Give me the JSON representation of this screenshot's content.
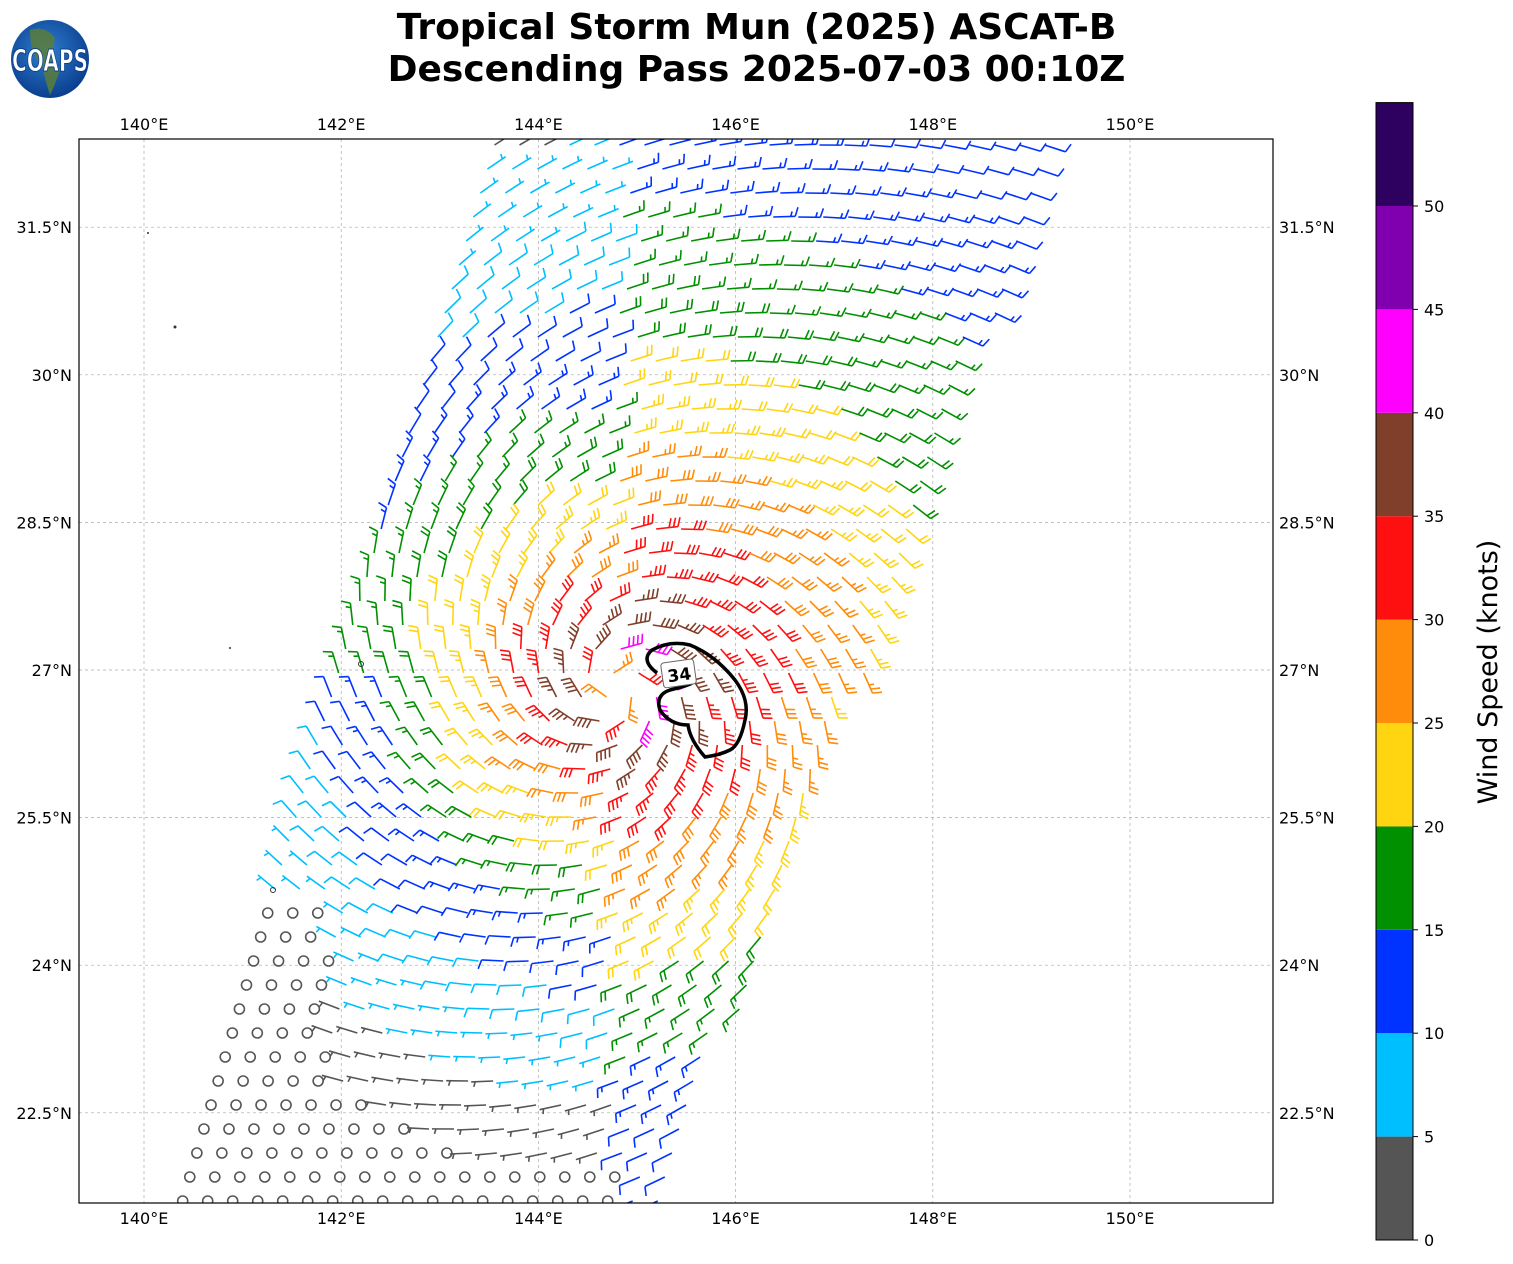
{
  "title": {
    "line1": "Tropical Storm Mun (2025) ASCAT-B",
    "line2": "Descending Pass 2025-07-03 00:10Z"
  },
  "logo": {
    "text": "COAPS"
  },
  "map": {
    "lon_ticks": [
      {
        "value": 140,
        "label": "140°E"
      },
      {
        "value": 142,
        "label": "142°E"
      },
      {
        "value": 144,
        "label": "144°E"
      },
      {
        "value": 146,
        "label": "146°E"
      },
      {
        "value": 148,
        "label": "148°E"
      },
      {
        "value": 150,
        "label": "150°E"
      }
    ],
    "lat_ticks": [
      {
        "value": 31.5,
        "label": "31.5°N"
      },
      {
        "value": 30,
        "label": "30°N"
      },
      {
        "value": 28.5,
        "label": "28.5°N"
      },
      {
        "value": 27,
        "label": "27°N"
      },
      {
        "value": 25.5,
        "label": "25.5°N"
      },
      {
        "value": 24,
        "label": "24°N"
      },
      {
        "value": 22.5,
        "label": "22.5°N"
      }
    ],
    "storm_center": {
      "lon": 144.8,
      "lat": 26.8
    },
    "contour_label": "34"
  },
  "colorbar": {
    "label": "Wind Speed (knots)",
    "ticks": [
      "0",
      "5",
      "10",
      "15",
      "20",
      "25",
      "30",
      "35",
      "40",
      "45",
      "50"
    ],
    "bins": [
      {
        "min": 0,
        "max": 5,
        "color": "#555555"
      },
      {
        "min": 5,
        "max": 10,
        "color": "#00bfff"
      },
      {
        "min": 10,
        "max": 15,
        "color": "#0033ff"
      },
      {
        "min": 15,
        "max": 20,
        "color": "#009000"
      },
      {
        "min": 20,
        "max": 25,
        "color": "#ffd511"
      },
      {
        "min": 25,
        "max": 30,
        "color": "#ff8c0a"
      },
      {
        "min": 30,
        "max": 35,
        "color": "#ff1010"
      },
      {
        "min": 35,
        "max": 40,
        "color": "#7f3f2a"
      },
      {
        "min": 40,
        "max": 45,
        "color": "#ff00ff"
      },
      {
        "min": 45,
        "max": 50,
        "color": "#8000b0"
      },
      {
        "min": 50,
        "max": 55,
        "color": "#2e0060"
      }
    ]
  }
}
